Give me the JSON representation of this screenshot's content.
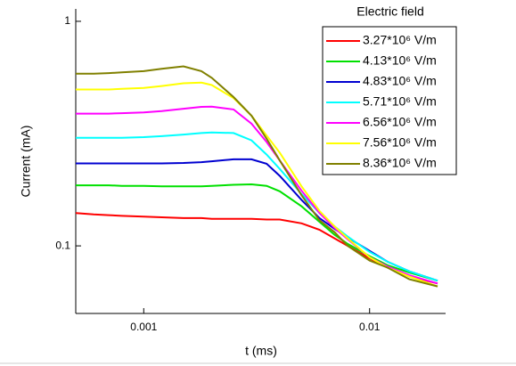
{
  "chart_data": {
    "type": "line",
    "x_label": "t (ms)",
    "y_label": "Current (mA)",
    "legend_title": "Electric field",
    "x_log": true,
    "y_log": true,
    "legend_position": "upper right",
    "xlim": [
      0.0005,
      0.02
    ],
    "ylim": [
      0.05,
      1.1
    ],
    "xticks": [
      0.001,
      0.01
    ],
    "yticks": [
      0.1,
      1
    ],
    "x": [
      0.0005,
      0.0006,
      0.0007,
      0.0008,
      0.001,
      0.0012,
      0.0015,
      0.0018,
      0.002,
      0.0025,
      0.003,
      0.0035,
      0.004,
      0.005,
      0.006,
      0.007,
      0.008,
      0.01,
      0.012,
      0.015,
      0.02
    ],
    "series": [
      {
        "name": "3.27*10⁶ V/m",
        "color": "#ff0000",
        "values": [
          0.14,
          0.138,
          0.137,
          0.136,
          0.135,
          0.134,
          0.133,
          0.133,
          0.132,
          0.132,
          0.132,
          0.131,
          0.131,
          0.126,
          0.118,
          0.108,
          0.1,
          0.088,
          0.08,
          0.073,
          0.068
        ]
      },
      {
        "name": "4.13*10⁶ V/m",
        "color": "#00e000",
        "values": [
          0.186,
          0.186,
          0.186,
          0.185,
          0.185,
          0.184,
          0.184,
          0.184,
          0.185,
          0.187,
          0.188,
          0.185,
          0.175,
          0.15,
          0.128,
          0.112,
          0.102,
          0.09,
          0.082,
          0.076,
          0.07
        ]
      },
      {
        "name": "4.83*10⁶ V/m",
        "color": "#0000d0",
        "values": [
          0.233,
          0.233,
          0.233,
          0.233,
          0.233,
          0.233,
          0.234,
          0.236,
          0.238,
          0.243,
          0.243,
          0.232,
          0.205,
          0.16,
          0.133,
          0.119,
          0.109,
          0.095,
          0.085,
          0.077,
          0.07
        ]
      },
      {
        "name": "5.71*10⁶ V/m",
        "color": "#00ffff",
        "values": [
          0.303,
          0.303,
          0.303,
          0.303,
          0.305,
          0.308,
          0.313,
          0.318,
          0.32,
          0.318,
          0.295,
          0.255,
          0.22,
          0.17,
          0.14,
          0.122,
          0.11,
          0.094,
          0.085,
          0.077,
          0.07
        ]
      },
      {
        "name": "6.56*10⁶ V/m",
        "color": "#ff00ff",
        "values": [
          0.388,
          0.388,
          0.388,
          0.39,
          0.393,
          0.398,
          0.408,
          0.416,
          0.417,
          0.405,
          0.35,
          0.29,
          0.24,
          0.176,
          0.14,
          0.12,
          0.107,
          0.089,
          0.081,
          0.074,
          0.068
        ]
      },
      {
        "name": "7.56*10⁶ V/m",
        "color": "#ffff00",
        "values": [
          0.497,
          0.497,
          0.497,
          0.5,
          0.505,
          0.515,
          0.53,
          0.533,
          0.52,
          0.455,
          0.38,
          0.31,
          0.26,
          0.184,
          0.143,
          0.122,
          0.108,
          0.089,
          0.08,
          0.073,
          0.066
        ]
      },
      {
        "name": "8.36*10⁶ V/m",
        "color": "#808000",
        "values": [
          0.585,
          0.585,
          0.588,
          0.592,
          0.6,
          0.615,
          0.63,
          0.6,
          0.56,
          0.46,
          0.38,
          0.3,
          0.24,
          0.168,
          0.13,
          0.115,
          0.1,
          0.086,
          0.08,
          0.071,
          0.066
        ]
      }
    ]
  }
}
